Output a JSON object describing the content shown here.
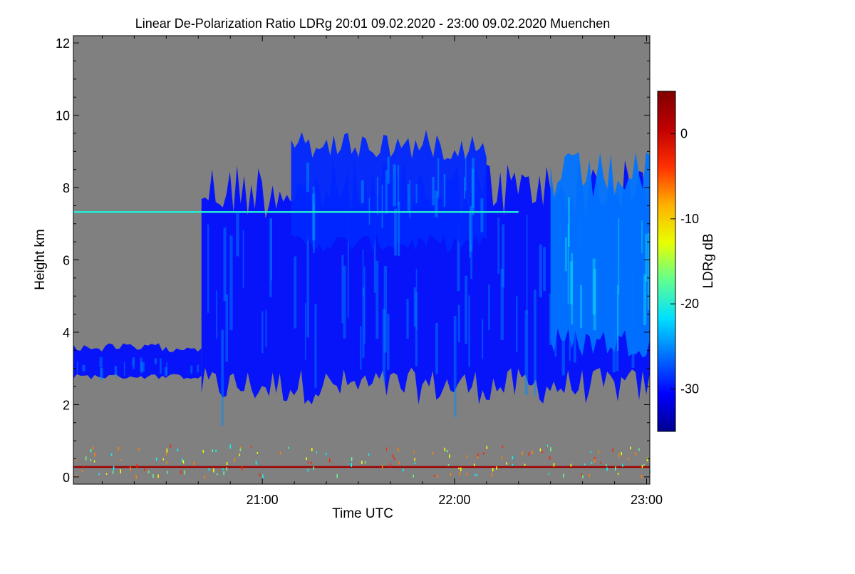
{
  "chart_data": {
    "type": "heatmap",
    "title": "Linear De-Polarization Ratio LDRg   20:01 09.02.2020 - 23:00 09.02.2020 Muenchen",
    "xlabel": "Time UTC",
    "ylabel": "Height km",
    "xlim": [
      "20:01",
      "23:01"
    ],
    "ylim": [
      -0.2,
      12.2
    ],
    "x_tick_labels": [
      "21:00",
      "22:00",
      "23:00"
    ],
    "y_ticks": [
      0,
      2,
      4,
      6,
      8,
      10,
      12
    ],
    "background_color": "#808080",
    "colorbar": {
      "label": "LDRg dB",
      "range": [
        -35,
        5
      ],
      "ticks": [
        0,
        -10,
        -20,
        -30
      ],
      "colors": [
        "#00008f",
        "#0000ff",
        "#0070ff",
        "#00e0ff",
        "#60ff90",
        "#e8ff00",
        "#ffb000",
        "#ff3000",
        "#c00000",
        "#800000"
      ]
    },
    "regions": [
      {
        "name": "main-cloud",
        "ldr_db": -30,
        "time_start": "20:41",
        "time_end": "23:01",
        "base_km": 2.0,
        "top_km": 8.8
      },
      {
        "name": "cirrus-fallstreaks",
        "ldr_db": -29,
        "time_start": "21:09",
        "time_end": "22:10",
        "base_km": 6.2,
        "top_km": 9.6
      },
      {
        "name": "high-layer-east",
        "ldr_db": -26,
        "time_start": "22:30",
        "time_end": "23:01",
        "base_km": 3.3,
        "top_km": 9.0
      },
      {
        "name": "low-layer-west",
        "ldr_db": -30,
        "time_start": "20:01",
        "time_end": "20:41",
        "base_km": 2.7,
        "top_km": 3.7
      },
      {
        "name": "thin-layer-7.3km",
        "ldr_db": -20,
        "time_start": "20:01",
        "time_end": "22:20",
        "base_km": 7.3,
        "top_km": 7.35
      },
      {
        "name": "surface-band",
        "ldr_db": 3,
        "time_start": "20:01",
        "time_end": "23:01",
        "base_km": 0.25,
        "top_km": 0.3
      }
    ]
  }
}
